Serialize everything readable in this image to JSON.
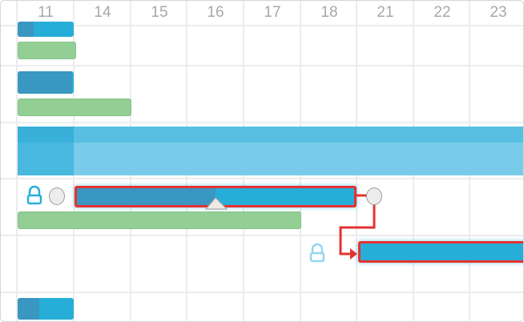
{
  "timeline": {
    "columns": [
      "11",
      "14",
      "15",
      "16",
      "17",
      "18",
      "21",
      "22",
      "23"
    ]
  },
  "colors": {
    "task": "#27aed8",
    "progress": "#3997c1",
    "baseline": "#93ce95",
    "selected_border": "#e53232",
    "dependency": "#e53232"
  },
  "tasks": [
    {
      "row": 1,
      "progress_percent": 28
    },
    {
      "row": 2,
      "progress_percent": 100
    },
    {
      "row": 3,
      "type": "summary"
    },
    {
      "row": 4,
      "progress_percent": 50,
      "selected": true,
      "locked": true
    },
    {
      "row": 5,
      "progress_percent": 0,
      "selected": true,
      "locked": true
    },
    {
      "row": 6,
      "progress_percent": 38
    }
  ],
  "icons": [
    "lock-icon",
    "lock-icon",
    "progress-handle-icon",
    "dependency-arrow-icon"
  ]
}
